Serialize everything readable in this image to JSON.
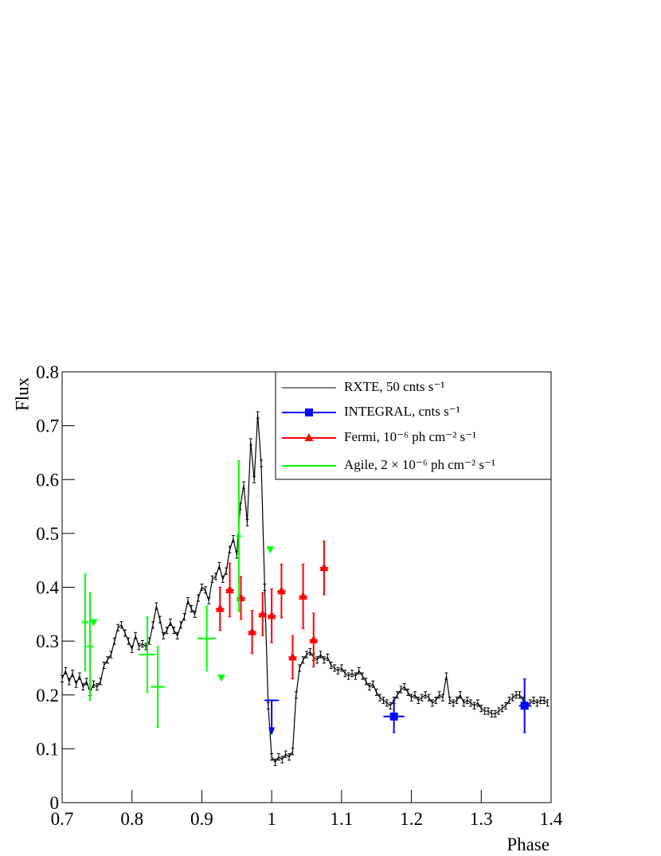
{
  "chart_data": {
    "type": "scatter",
    "x_label": "Phase",
    "y_label": "Flux",
    "xlim": [
      0.7,
      1.4
    ],
    "ylim": [
      0,
      0.8
    ],
    "xticks": [
      0.7,
      0.8,
      0.9,
      1,
      1.1,
      1.2,
      1.3,
      1.4
    ],
    "yticks": [
      0,
      0.1,
      0.2,
      0.3,
      0.4,
      0.5,
      0.6,
      0.7,
      0.8
    ],
    "legend": "top-right",
    "series": [
      {
        "name": "RXTE, 50 cnts s⁻¹",
        "color": "#000000",
        "marker": "none",
        "line": true,
        "x": [
          0.7,
          0.705,
          0.71,
          0.715,
          0.72,
          0.725,
          0.73,
          0.735,
          0.74,
          0.745,
          0.75,
          0.755,
          0.76,
          0.765,
          0.77,
          0.775,
          0.78,
          0.785,
          0.79,
          0.795,
          0.8,
          0.805,
          0.81,
          0.815,
          0.82,
          0.825,
          0.83,
          0.835,
          0.84,
          0.845,
          0.85,
          0.855,
          0.86,
          0.865,
          0.87,
          0.875,
          0.88,
          0.885,
          0.89,
          0.895,
          0.9,
          0.905,
          0.91,
          0.915,
          0.92,
          0.925,
          0.93,
          0.935,
          0.94,
          0.945,
          0.95,
          0.955,
          0.96,
          0.965,
          0.97,
          0.975,
          0.98,
          0.985,
          0.99,
          0.995,
          1.0,
          1.005,
          1.01,
          1.015,
          1.02,
          1.025,
          1.03,
          1.035,
          1.04,
          1.045,
          1.05,
          1.055,
          1.06,
          1.065,
          1.07,
          1.075,
          1.08,
          1.085,
          1.09,
          1.095,
          1.1,
          1.105,
          1.11,
          1.115,
          1.12,
          1.125,
          1.13,
          1.135,
          1.14,
          1.145,
          1.15,
          1.155,
          1.16,
          1.165,
          1.17,
          1.175,
          1.18,
          1.185,
          1.19,
          1.195,
          1.2,
          1.205,
          1.21,
          1.215,
          1.22,
          1.225,
          1.23,
          1.235,
          1.24,
          1.245,
          1.25,
          1.255,
          1.26,
          1.265,
          1.27,
          1.275,
          1.28,
          1.285,
          1.29,
          1.295,
          1.3,
          1.305,
          1.31,
          1.315,
          1.32,
          1.325,
          1.33,
          1.335,
          1.34,
          1.345,
          1.35,
          1.355,
          1.36,
          1.365,
          1.37,
          1.375,
          1.38,
          1.385,
          1.39,
          1.395
        ],
        "values": [
          0.23,
          0.245,
          0.225,
          0.24,
          0.22,
          0.235,
          0.215,
          0.225,
          0.205,
          0.22,
          0.215,
          0.225,
          0.255,
          0.265,
          0.275,
          0.3,
          0.325,
          0.33,
          0.315,
          0.3,
          0.285,
          0.31,
          0.29,
          0.295,
          0.29,
          0.3,
          0.33,
          0.365,
          0.34,
          0.31,
          0.32,
          0.335,
          0.32,
          0.31,
          0.33,
          0.345,
          0.375,
          0.36,
          0.35,
          0.38,
          0.4,
          0.395,
          0.375,
          0.415,
          0.42,
          0.44,
          0.415,
          0.43,
          0.47,
          0.49,
          0.46,
          0.55,
          0.59,
          0.52,
          0.67,
          0.6,
          0.72,
          0.63,
          0.4,
          0.18,
          0.085,
          0.075,
          0.085,
          0.08,
          0.09,
          0.085,
          0.095,
          0.2,
          0.25,
          0.265,
          0.275,
          0.28,
          0.27,
          0.265,
          0.275,
          0.265,
          0.27,
          0.255,
          0.25,
          0.245,
          0.25,
          0.24,
          0.235,
          0.24,
          0.235,
          0.245,
          0.235,
          0.225,
          0.215,
          0.22,
          0.205,
          0.195,
          0.19,
          0.185,
          0.18,
          0.19,
          0.2,
          0.21,
          0.215,
          0.205,
          0.195,
          0.2,
          0.19,
          0.195,
          0.2,
          0.195,
          0.185,
          0.19,
          0.2,
          0.195,
          0.235,
          0.19,
          0.185,
          0.19,
          0.2,
          0.185,
          0.19,
          0.185,
          0.18,
          0.185,
          0.175,
          0.17,
          0.17,
          0.165,
          0.165,
          0.17,
          0.175,
          0.18,
          0.19,
          0.195,
          0.2,
          0.2,
          0.19,
          0.18,
          0.185,
          0.19,
          0.185,
          0.19,
          0.19,
          0.185
        ],
        "yerr": 0.006
      },
      {
        "name": "INTEGRAL, cnts s⁻¹",
        "color": "#0000ff",
        "marker": "square",
        "line": false,
        "x": [
          1.175,
          1.362
        ],
        "values": [
          0.16,
          0.18
        ],
        "xerr": [
          0.015,
          0.008
        ],
        "yerr": [
          0.03,
          0.05
        ],
        "upper_limits_x": [
          1.0
        ],
        "upper_limits": [
          0.19
        ]
      },
      {
        "name": "Fermi, 10⁻⁶ ph cm⁻² s⁻¹",
        "color": "#ff0000",
        "marker": "triangle-up",
        "line": false,
        "x": [
          0.926,
          0.94,
          0.956,
          0.972,
          0.987,
          1.0,
          1.014,
          1.03,
          1.045,
          1.06,
          1.075
        ],
        "values": [
          0.36,
          0.395,
          0.38,
          0.317,
          0.35,
          0.347,
          0.393,
          0.27,
          0.383,
          0.302,
          0.436
        ],
        "xerr": [
          0.006,
          0.006,
          0.006,
          0.006,
          0.006,
          0.006,
          0.006,
          0.006,
          0.006,
          0.006,
          0.006
        ],
        "yerr": [
          0.04,
          0.05,
          0.04,
          0.04,
          0.04,
          0.05,
          0.05,
          0.04,
          0.06,
          0.05,
          0.05
        ]
      },
      {
        "name": "Agile, 2 × 10⁻⁶ ph cm⁻² s⁻¹",
        "color": "#00ff00",
        "marker": "none",
        "line": false,
        "x": [
          0.733,
          0.74,
          0.822,
          0.837,
          0.907,
          0.953
        ],
        "values": [
          0.335,
          0.29,
          0.275,
          0.215,
          0.305,
          0.495
        ],
        "xerr": [
          0.005,
          0.005,
          0.012,
          0.01,
          0.013,
          0.004
        ],
        "yerr": [
          0.09,
          0.1,
          0.07,
          0.075,
          0.06,
          0.14
        ],
        "upper_limits_x": [
          0.745,
          0.928,
          0.998
        ],
        "upper_limits": [
          0.335,
          0.232,
          0.47
        ]
      }
    ]
  }
}
